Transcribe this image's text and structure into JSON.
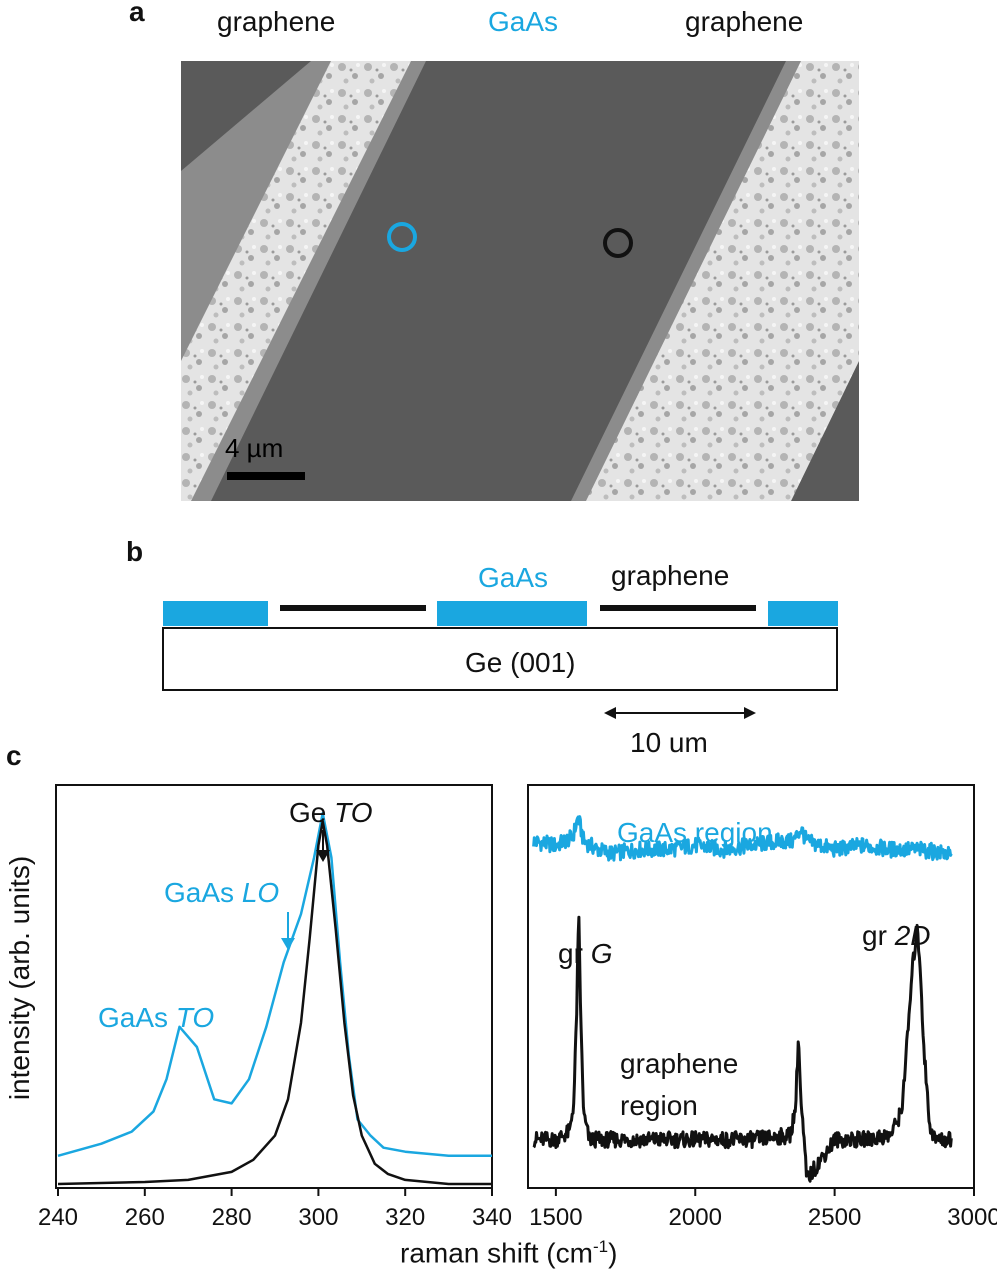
{
  "panel_a": {
    "letter": "a",
    "labels": {
      "left": "graphene",
      "center": "GaAs",
      "right": "graphene"
    },
    "scalebar_label": "4 µm"
  },
  "panel_b": {
    "letter": "b",
    "gaas_label": "GaAs",
    "graphene_label": "graphene",
    "substrate_label": "Ge (001)",
    "dimension_label": "10 um"
  },
  "panel_c": {
    "letter": "c",
    "ylabel": "intensity (arb. units)",
    "xlabel_main": "raman shift (cm",
    "xlabel_sup": "-1",
    "xlabel_end": ")",
    "left_annotations": {
      "ge_to_1": "Ge ",
      "ge_to_2": "TO",
      "gaas_lo_1": "GaAs ",
      "gaas_lo_2": "LO",
      "gaas_to_1": "GaAs ",
      "gaas_to_2": "TO"
    },
    "right_annotations": {
      "gaas_region": "GaAs region",
      "gr_g_1": "gr ",
      "gr_g_2": "G",
      "gr_2d_1": "gr ",
      "gr_2d_2": "2D",
      "graphene_region_1": "graphene",
      "graphene_region_2": "region"
    }
  },
  "colors": {
    "gaas": "#1aa7e0",
    "graphene": "#111111"
  },
  "chart_data": [
    {
      "type": "line",
      "xlim": [
        240,
        340
      ],
      "ylim": [
        0,
        1
      ],
      "xticks": [
        240,
        260,
        280,
        300,
        320,
        340
      ],
      "series": [
        {
          "name": "GaAs",
          "x": [
            240,
            250,
            257,
            262,
            265,
            268,
            272,
            276,
            280,
            284,
            288,
            292,
            296,
            299,
            301,
            303,
            305,
            307,
            309,
            312,
            315,
            320,
            330,
            340
          ],
          "y": [
            0.08,
            0.11,
            0.14,
            0.19,
            0.27,
            0.4,
            0.35,
            0.22,
            0.21,
            0.27,
            0.4,
            0.56,
            0.68,
            0.82,
            0.93,
            0.82,
            0.56,
            0.33,
            0.17,
            0.13,
            0.1,
            0.09,
            0.08,
            0.08
          ]
        },
        {
          "name": "Ge",
          "x": [
            240,
            260,
            270,
            280,
            285,
            290,
            293,
            296,
            298,
            300,
            301,
            302,
            304,
            306,
            308,
            310,
            313,
            316,
            320,
            330,
            340
          ],
          "y": [
            0.01,
            0.015,
            0.02,
            0.04,
            0.07,
            0.13,
            0.22,
            0.41,
            0.62,
            0.85,
            0.91,
            0.85,
            0.64,
            0.41,
            0.23,
            0.13,
            0.06,
            0.035,
            0.02,
            0.01,
            0.01
          ]
        }
      ]
    },
    {
      "type": "line",
      "xlim": [
        1400,
        3000
      ],
      "ylim": [
        0,
        1
      ],
      "xticks": [
        1500,
        2000,
        2500,
        3000
      ],
      "series": [
        {
          "name": "GaAs region",
          "x": [
            1420,
            1500,
            1560,
            1580,
            1600,
            1650,
            1700,
            1800,
            1900,
            2000,
            2100,
            2200,
            2300,
            2350,
            2380,
            2400,
            2500,
            2600,
            2700,
            2800,
            2900,
            2920
          ],
          "y": [
            0.86,
            0.85,
            0.87,
            0.92,
            0.86,
            0.84,
            0.83,
            0.84,
            0.84,
            0.85,
            0.84,
            0.85,
            0.86,
            0.86,
            0.89,
            0.86,
            0.84,
            0.85,
            0.84,
            0.84,
            0.83,
            0.82
          ]
        },
        {
          "name": "graphene region",
          "x": [
            1420,
            1500,
            1550,
            1565,
            1575,
            1582,
            1590,
            1600,
            1620,
            1700,
            1800,
            2000,
            2200,
            2340,
            2360,
            2370,
            2380,
            2390,
            2400,
            2500,
            2600,
            2700,
            2740,
            2760,
            2780,
            2795,
            2805,
            2820,
            2840,
            2860,
            2900,
            2920
          ],
          "y": [
            0.12,
            0.12,
            0.14,
            0.22,
            0.45,
            0.68,
            0.4,
            0.18,
            0.12,
            0.12,
            0.12,
            0.12,
            0.12,
            0.13,
            0.2,
            0.38,
            0.2,
            0.12,
            0.02,
            0.12,
            0.12,
            0.13,
            0.19,
            0.36,
            0.55,
            0.64,
            0.58,
            0.35,
            0.16,
            0.12,
            0.12,
            0.12
          ]
        }
      ]
    }
  ]
}
